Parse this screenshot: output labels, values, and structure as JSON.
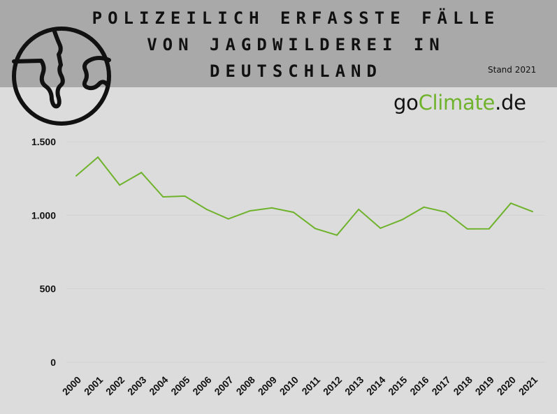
{
  "header": {
    "title_lines": [
      "POLIZEILICH ERFASSTE FÄLLE",
      "VON JAGDWILDEREI IN",
      "DEUTSCHLAND"
    ],
    "stand": "Stand 2021",
    "icon": "globe-icon"
  },
  "brand": {
    "prefix": "go",
    "accent": "Climate",
    "suffix": ".de"
  },
  "colors": {
    "header_bg": "#a9a9a9",
    "page_bg": "#dcdcdc",
    "line": "#6fb22c",
    "brand_accent": "#6fb22c"
  },
  "chart_data": {
    "type": "line",
    "title": "POLIZEILICH ERFASSTE FÄLLE VON JAGDWILDEREI IN DEUTSCHLAND",
    "xlabel": "",
    "ylabel": "",
    "x": [
      "2000",
      "2001",
      "2002",
      "2003",
      "2004",
      "2005",
      "2006",
      "2007",
      "2008",
      "2009",
      "2010",
      "2011",
      "2012",
      "2013",
      "2014",
      "2015",
      "2016",
      "2017",
      "2018",
      "2019",
      "2020",
      "2021"
    ],
    "series": [
      {
        "values": [
          1268,
          1395,
          1205,
          1290,
          1125,
          1130,
          1040,
          975,
          1030,
          1050,
          1020,
          910,
          865,
          1040,
          912,
          970,
          1055,
          1022,
          907,
          908,
          1082,
          1025
        ],
        "color": "#6fb22c"
      }
    ],
    "ylim": [
      0,
      1500
    ],
    "yticks": [
      0,
      500,
      1000,
      1500
    ],
    "ytick_labels": [
      "0",
      "500",
      "1.000",
      "1.500"
    ],
    "grid": true,
    "legend": "none"
  }
}
